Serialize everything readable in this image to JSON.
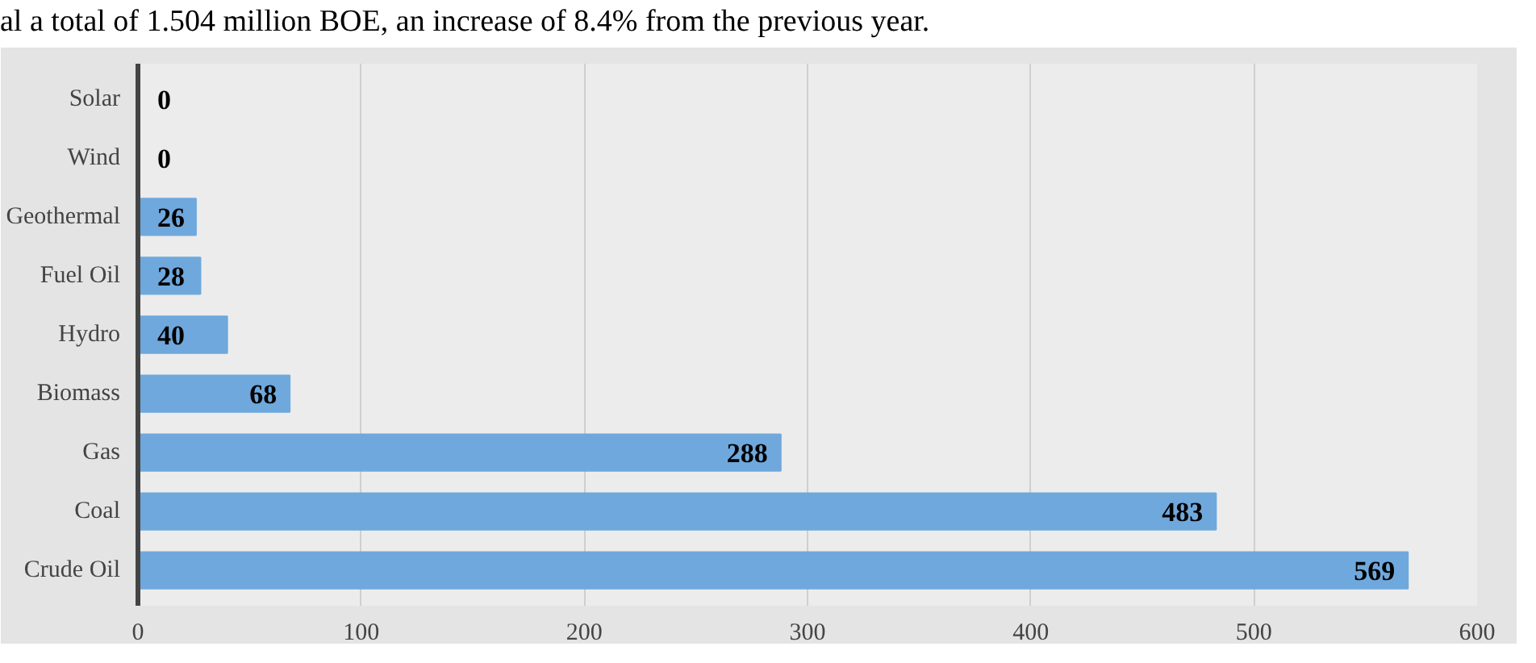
{
  "chart_data": {
    "type": "bar",
    "orientation": "horizontal",
    "categories": [
      "Solar",
      "Wind",
      "Geothermal",
      "Fuel Oil",
      "Hydro",
      "Biomass",
      "Gas",
      "Coal",
      "Crude Oil"
    ],
    "values": [
      0,
      0,
      26,
      28,
      40,
      68,
      288,
      483,
      569
    ],
    "color": "#6fa8dc",
    "xlim": [
      0,
      600
    ],
    "xticks": [
      0,
      100,
      200,
      300,
      400,
      500,
      600
    ],
    "grid": "x",
    "data_labels": true,
    "annotations": [
      "al a total of 1.504 million BOE, an increase of 8.4% from the previous year."
    ]
  }
}
